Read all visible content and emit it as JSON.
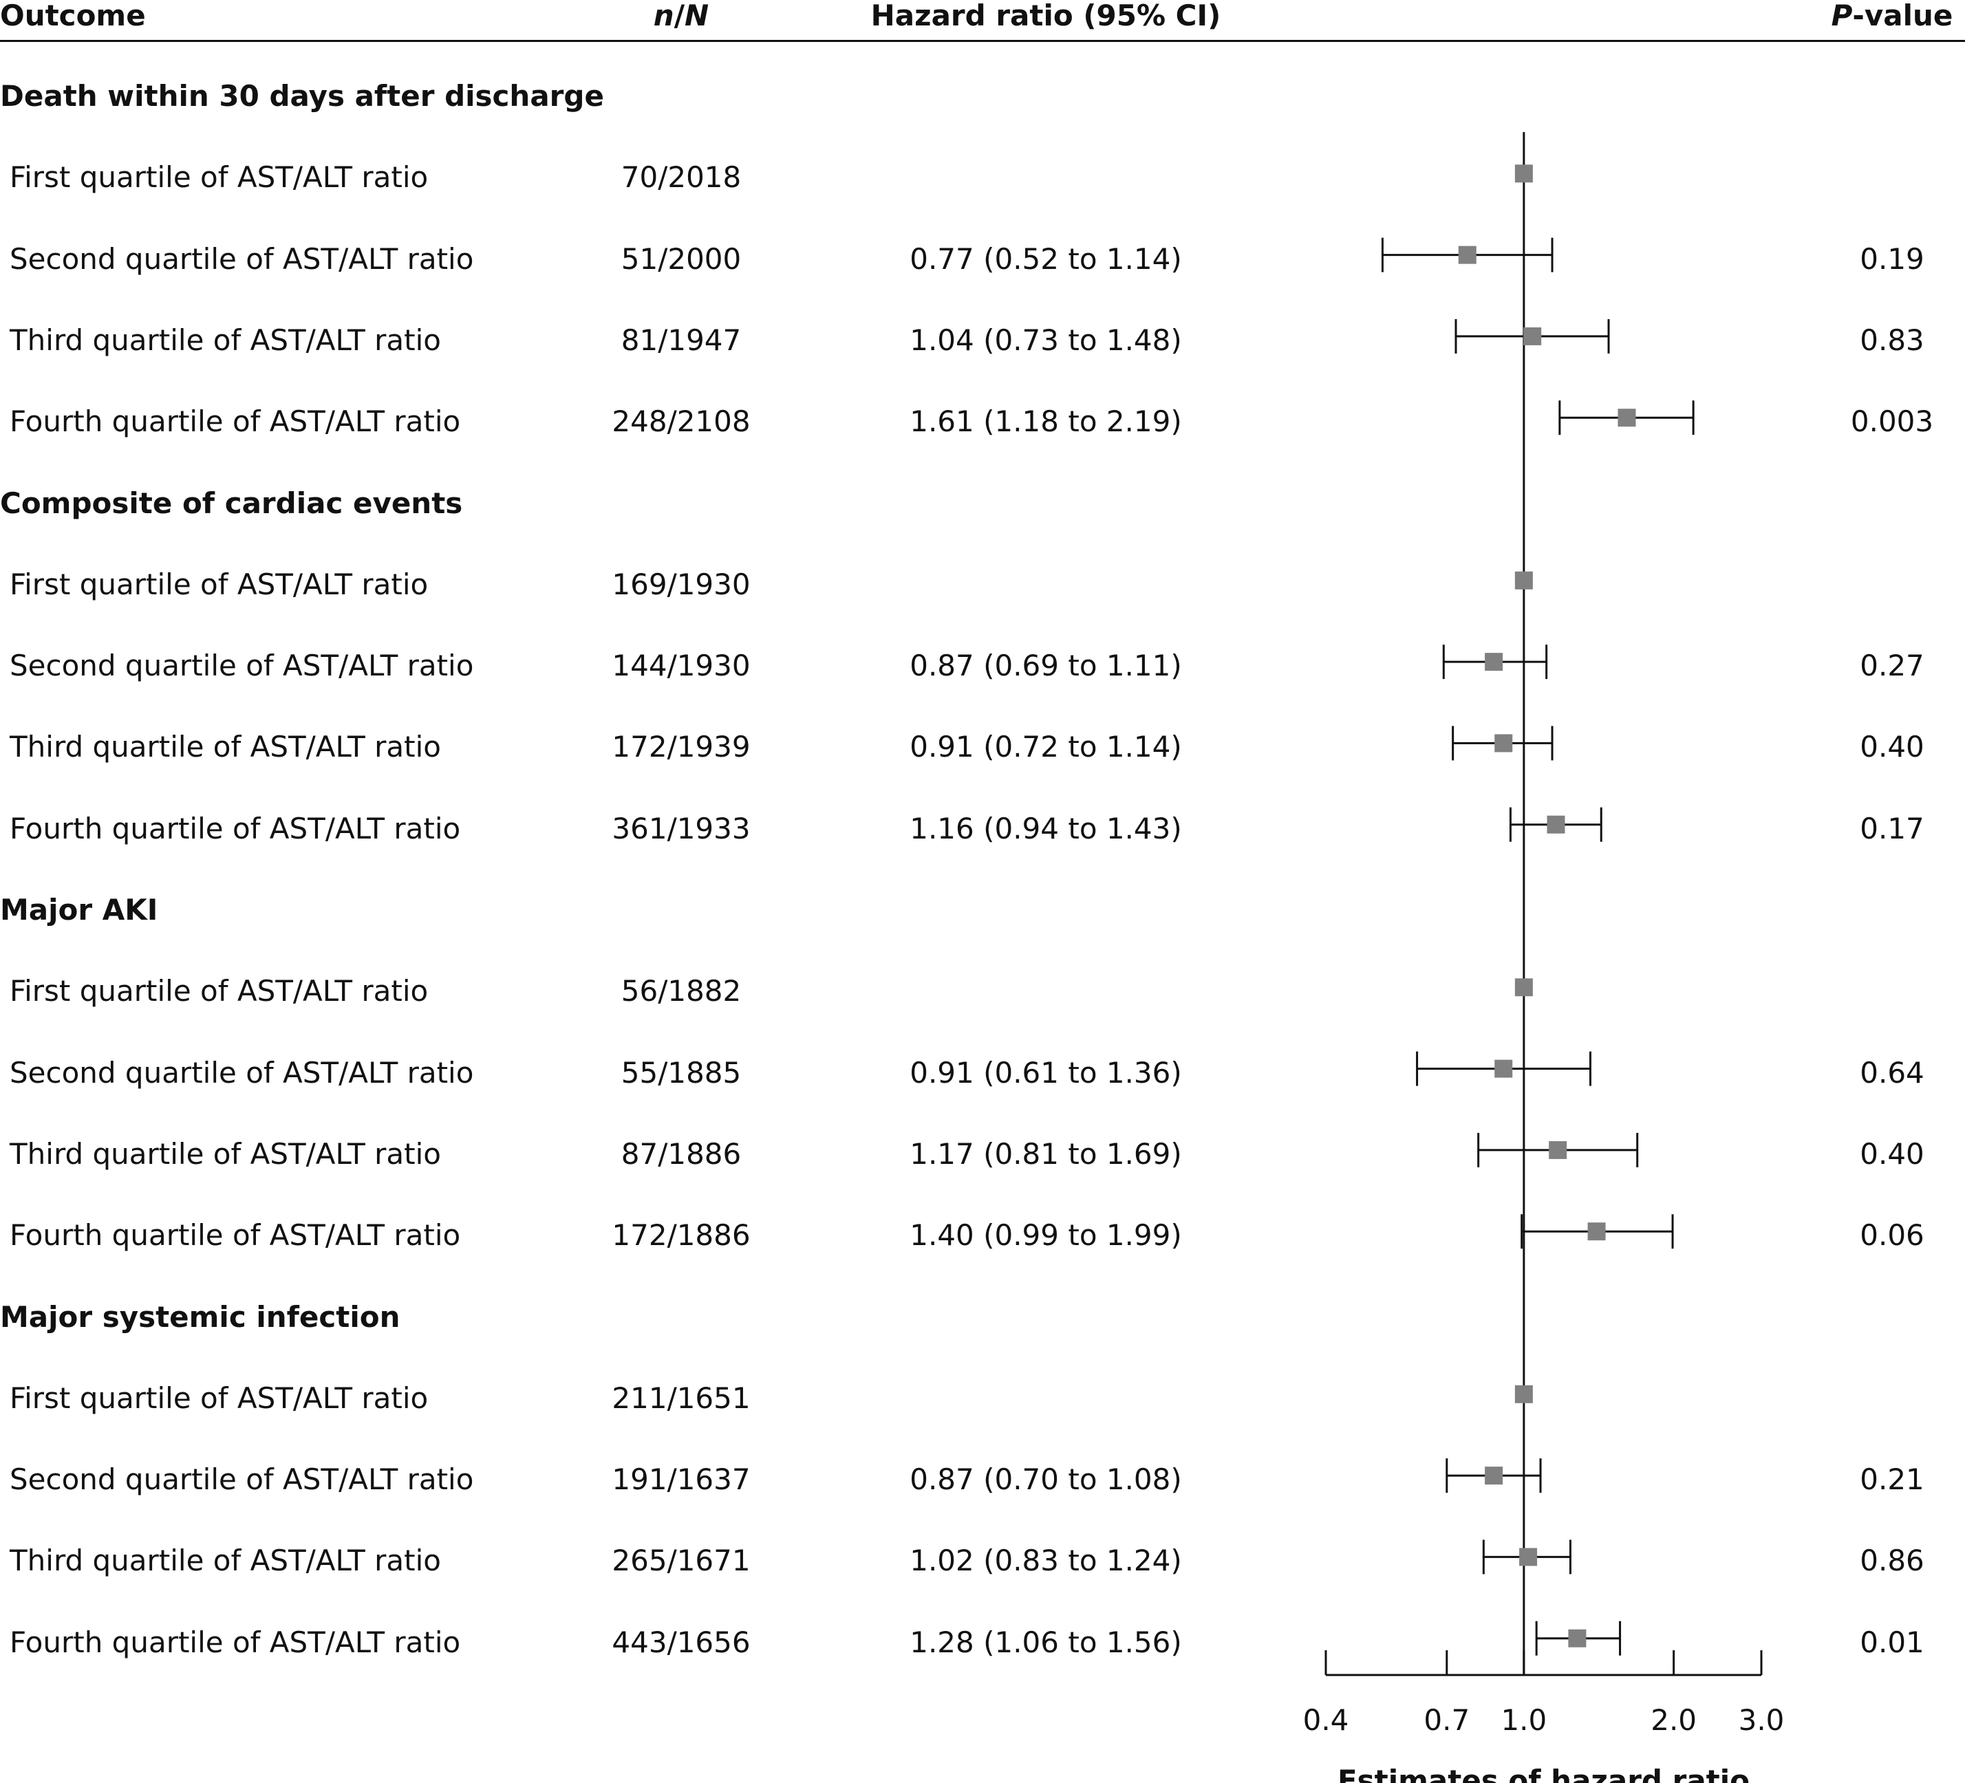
{
  "header": {
    "outcome": "Outcome",
    "n_italic_1": "n",
    "n_slash": "/",
    "n_italic_2": "N",
    "hazard_ratio": "Hazard ratio (95% CI)",
    "p_italic": "P",
    "p_rest": "-value"
  },
  "sections": [
    {
      "title": "Death within 30 days after discharge",
      "rows": [
        {
          "label": "First quartile of AST/ALT ratio",
          "n": "70/2018",
          "hr_text": "",
          "p": ""
        },
        {
          "label": "Second quartile of AST/ALT ratio",
          "n": "51/2000",
          "hr_text": "0.77 (0.52 to 1.14)",
          "p": "0.19"
        },
        {
          "label": "Third quartile of AST/ALT ratio",
          "n": "81/1947",
          "hr_text": "1.04 (0.73 to 1.48)",
          "p": "0.83"
        },
        {
          "label": "Fourth quartile of AST/ALT ratio",
          "n": "248/2108",
          "hr_text": "1.61 (1.18 to 2.19)",
          "p": "0.003"
        }
      ]
    },
    {
      "title": "Composite of cardiac events",
      "rows": [
        {
          "label": "First quartile of AST/ALT ratio",
          "n": "169/1930",
          "hr_text": "",
          "p": ""
        },
        {
          "label": "Second quartile of AST/ALT ratio",
          "n": "144/1930",
          "hr_text": "0.87 (0.69 to 1.11)",
          "p": "0.27"
        },
        {
          "label": "Third quartile of AST/ALT ratio",
          "n": "172/1939",
          "hr_text": "0.91 (0.72 to 1.14)",
          "p": "0.40"
        },
        {
          "label": "Fourth quartile of AST/ALT ratio",
          "n": "361/1933",
          "hr_text": "1.16 (0.94 to 1.43)",
          "p": "0.17"
        }
      ]
    },
    {
      "title": "Major AKI",
      "rows": [
        {
          "label": "First quartile of AST/ALT ratio",
          "n": "56/1882",
          "hr_text": "",
          "p": ""
        },
        {
          "label": "Second quartile of AST/ALT ratio",
          "n": "55/1885",
          "hr_text": "0.91 (0.61 to 1.36)",
          "p": "0.64"
        },
        {
          "label": "Third quartile of AST/ALT ratio",
          "n": "87/1886",
          "hr_text": "1.17 (0.81 to 1.69)",
          "p": "0.40"
        },
        {
          "label": "Fourth quartile of AST/ALT ratio",
          "n": "172/1886",
          "hr_text": "1.40 (0.99 to 1.99)",
          "p": "0.06"
        }
      ]
    },
    {
      "title": "Major systemic infection",
      "rows": [
        {
          "label": "First quartile of AST/ALT ratio",
          "n": "211/1651",
          "hr_text": "",
          "p": ""
        },
        {
          "label": "Second quartile of AST/ALT ratio",
          "n": "191/1637",
          "hr_text": "0.87 (0.70 to 1.08)",
          "p": "0.21"
        },
        {
          "label": "Third quartile of AST/ALT ratio",
          "n": "265/1671",
          "hr_text": "1.02 (0.83 to 1.24)",
          "p": "0.86"
        },
        {
          "label": "Fourth quartile of AST/ALT ratio",
          "n": "443/1656",
          "hr_text": "1.28 (1.06 to 1.56)",
          "p": "0.01"
        }
      ]
    }
  ],
  "chart_data": {
    "type": "forest",
    "xlabel": "Estimates of hazard ratio",
    "x_scale": "log",
    "xlim": [
      0.4,
      3.0
    ],
    "reference_line": 1.0,
    "x_ticks": [
      0.4,
      0.7,
      1.0,
      2.0,
      3.0
    ],
    "x_tick_labels": [
      "0.4",
      "0.7",
      "1.0",
      "2.0",
      "3.0"
    ],
    "marker_color": "#808080",
    "points": [
      {
        "section": 0,
        "row": 0,
        "hr": 1.0,
        "lo": null,
        "hi": null
      },
      {
        "section": 0,
        "row": 1,
        "hr": 0.77,
        "lo": 0.52,
        "hi": 1.14
      },
      {
        "section": 0,
        "row": 2,
        "hr": 1.04,
        "lo": 0.73,
        "hi": 1.48
      },
      {
        "section": 0,
        "row": 3,
        "hr": 1.61,
        "lo": 1.18,
        "hi": 2.19
      },
      {
        "section": 1,
        "row": 0,
        "hr": 1.0,
        "lo": null,
        "hi": null
      },
      {
        "section": 1,
        "row": 1,
        "hr": 0.87,
        "lo": 0.69,
        "hi": 1.11
      },
      {
        "section": 1,
        "row": 2,
        "hr": 0.91,
        "lo": 0.72,
        "hi": 1.14
      },
      {
        "section": 1,
        "row": 3,
        "hr": 1.16,
        "lo": 0.94,
        "hi": 1.43
      },
      {
        "section": 2,
        "row": 0,
        "hr": 1.0,
        "lo": null,
        "hi": null
      },
      {
        "section": 2,
        "row": 1,
        "hr": 0.91,
        "lo": 0.61,
        "hi": 1.36
      },
      {
        "section": 2,
        "row": 2,
        "hr": 1.17,
        "lo": 0.81,
        "hi": 1.69
      },
      {
        "section": 2,
        "row": 3,
        "hr": 1.4,
        "lo": 0.99,
        "hi": 1.99
      },
      {
        "section": 3,
        "row": 0,
        "hr": 1.0,
        "lo": null,
        "hi": null
      },
      {
        "section": 3,
        "row": 1,
        "hr": 0.87,
        "lo": 0.7,
        "hi": 1.08
      },
      {
        "section": 3,
        "row": 2,
        "hr": 1.02,
        "lo": 0.83,
        "hi": 1.24
      },
      {
        "section": 3,
        "row": 3,
        "hr": 1.28,
        "lo": 1.06,
        "hi": 1.56
      }
    ]
  }
}
